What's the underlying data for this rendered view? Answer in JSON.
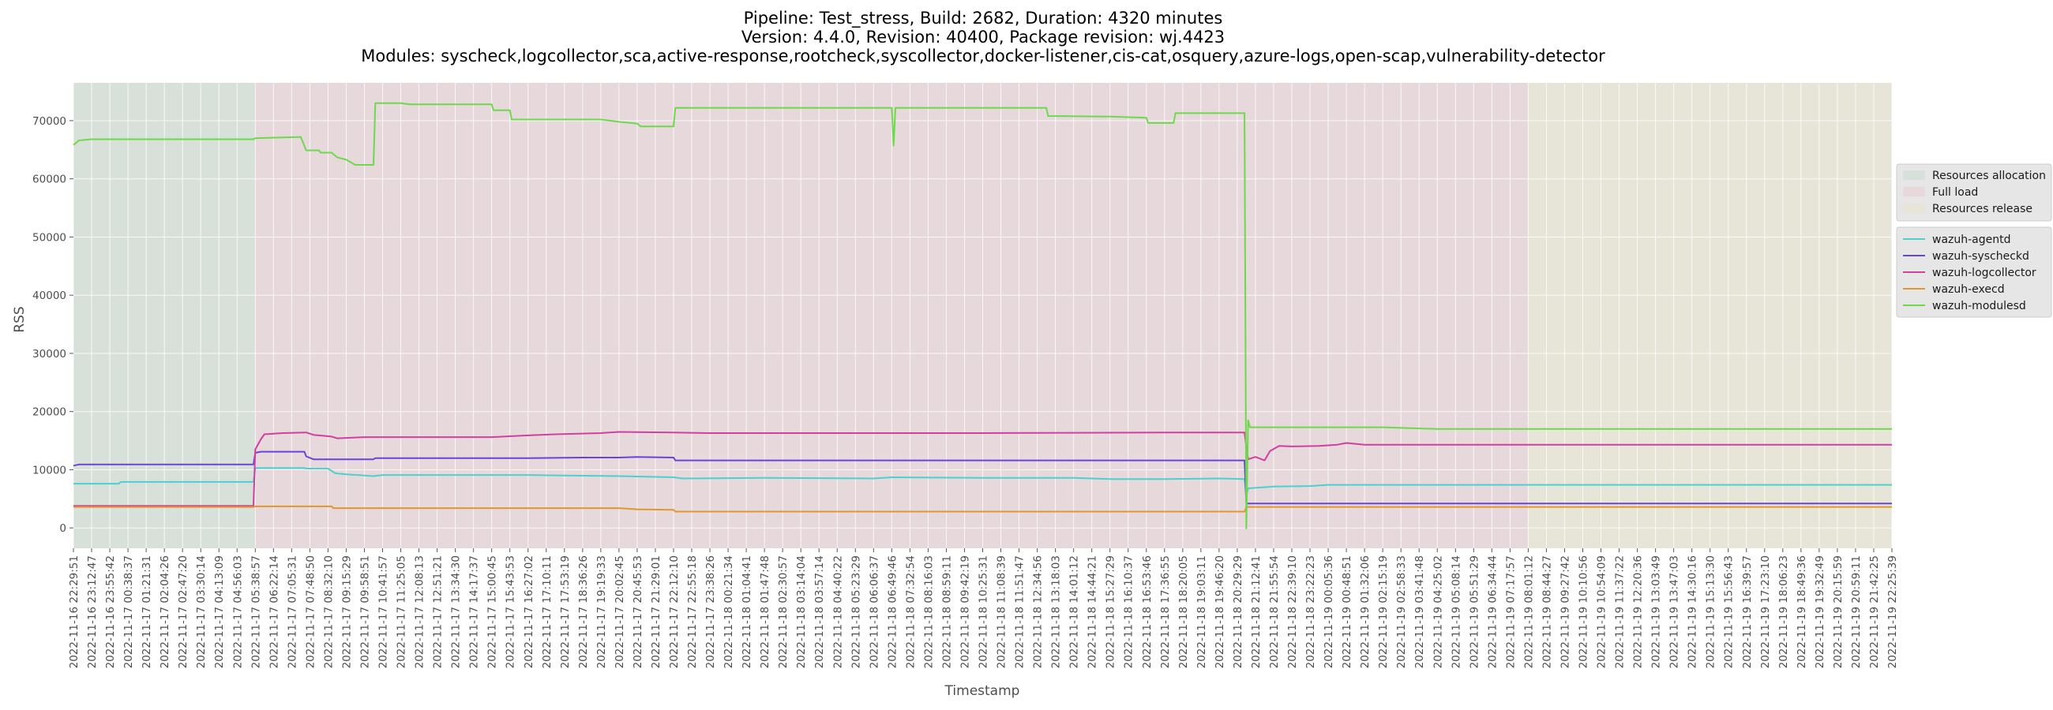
{
  "chart_data": {
    "type": "line",
    "title_lines": [
      "Pipeline: Test_stress, Build: 2682, Duration: 4320 minutes",
      "Version: 4.4.0, Revision: 40400, Package revision: wj.4423",
      "Modules: syscheck,logcollector,sca,active-response,rootcheck,syscollector,docker-listener,cis-cat,osquery,azure-logs,open-scap,vulnerability-detector"
    ],
    "xlabel": "Timestamp",
    "ylabel": "RSS",
    "ylim": [
      -3500,
      76500
    ],
    "yticks": [
      0,
      10000,
      20000,
      30000,
      40000,
      50000,
      60000,
      70000
    ],
    "x_index_range": [
      0,
      100
    ],
    "grid": true,
    "legend_placement": "right",
    "xtick_labels": [
      "2022-11-16 22:29:51",
      "2022-11-16 23:12:47",
      "2022-11-16 23:55:42",
      "2022-11-17 00:38:37",
      "2022-11-17 01:21:31",
      "2022-11-17 02:04:26",
      "2022-11-17 02:47:20",
      "2022-11-17 03:30:14",
      "2022-11-17 04:13:09",
      "2022-11-17 04:56:03",
      "2022-11-17 05:38:57",
      "2022-11-17 06:22:14",
      "2022-11-17 07:05:31",
      "2022-11-17 07:48:50",
      "2022-11-17 08:32:10",
      "2022-11-17 09:15:29",
      "2022-11-17 09:58:51",
      "2022-11-17 10:41:57",
      "2022-11-17 11:25:05",
      "2022-11-17 12:08:13",
      "2022-11-17 12:51:21",
      "2022-11-17 13:34:30",
      "2022-11-17 14:17:37",
      "2022-11-17 15:00:45",
      "2022-11-17 15:43:53",
      "2022-11-17 16:27:02",
      "2022-11-17 17:10:11",
      "2022-11-17 17:53:19",
      "2022-11-17 18:36:26",
      "2022-11-17 19:19:33",
      "2022-11-17 20:02:45",
      "2022-11-17 20:45:53",
      "2022-11-17 21:29:01",
      "2022-11-17 22:12:10",
      "2022-11-17 22:55:18",
      "2022-11-17 23:38:26",
      "2022-11-18 00:21:34",
      "2022-11-18 01:04:41",
      "2022-11-18 01:47:48",
      "2022-11-18 02:30:57",
      "2022-11-18 03:14:04",
      "2022-11-18 03:57:14",
      "2022-11-18 04:40:22",
      "2022-11-18 05:23:29",
      "2022-11-18 06:06:37",
      "2022-11-18 06:49:46",
      "2022-11-18 07:32:54",
      "2022-11-18 08:16:03",
      "2022-11-18 08:59:11",
      "2022-11-18 09:42:19",
      "2022-11-18 10:25:31",
      "2022-11-18 11:08:39",
      "2022-11-18 11:51:47",
      "2022-11-18 12:34:56",
      "2022-11-18 13:18:03",
      "2022-11-18 14:01:12",
      "2022-11-18 14:44:21",
      "2022-11-18 15:27:29",
      "2022-11-18 16:10:37",
      "2022-11-18 16:53:46",
      "2022-11-18 17:36:55",
      "2022-11-18 18:20:05",
      "2022-11-18 19:03:11",
      "2022-11-18 19:46:20",
      "2022-11-18 20:29:29",
      "2022-11-18 21:12:41",
      "2022-11-18 21:55:54",
      "2022-11-18 22:39:10",
      "2022-11-18 23:22:23",
      "2022-11-19 00:05:36",
      "2022-11-19 00:48:51",
      "2022-11-19 01:32:06",
      "2022-11-19 02:15:19",
      "2022-11-19 02:58:33",
      "2022-11-19 03:41:48",
      "2022-11-19 04:25:02",
      "2022-11-19 05:08:14",
      "2022-11-19 05:51:29",
      "2022-11-19 06:34:44",
      "2022-11-19 07:17:57",
      "2022-11-19 08:01:12",
      "2022-11-19 08:44:27",
      "2022-11-19 09:27:42",
      "2022-11-19 10:10:56",
      "2022-11-19 10:54:09",
      "2022-11-19 11:37:22",
      "2022-11-19 12:20:36",
      "2022-11-19 13:03:49",
      "2022-11-19 13:47:03",
      "2022-11-19 14:30:16",
      "2022-11-19 15:13:30",
      "2022-11-19 15:56:43",
      "2022-11-19 16:39:57",
      "2022-11-19 17:23:10",
      "2022-11-19 18:06:23",
      "2022-11-19 18:49:36",
      "2022-11-19 19:32:49",
      "2022-11-19 20:15:59",
      "2022-11-19 20:59:11",
      "2022-11-19 21:42:25",
      "2022-11-19 22:25:39"
    ],
    "phases": [
      {
        "name": "Resources allocation",
        "from": 0,
        "to": 10,
        "color": "#d8e0da"
      },
      {
        "name": "Full load",
        "from": 10,
        "to": 80,
        "color": "#e6d8db"
      },
      {
        "name": "Resources release",
        "from": 80,
        "to": 100,
        "color": "#e6e5d8"
      }
    ],
    "series": [
      {
        "name": "wazuh-agentd",
        "color": "#4dd0d0",
        "points": [
          [
            0,
            7600
          ],
          [
            2.5,
            7600
          ],
          [
            2.6,
            7900
          ],
          [
            9.9,
            7900
          ],
          [
            10,
            10300
          ],
          [
            12.7,
            10300
          ],
          [
            12.8,
            10200
          ],
          [
            14,
            10200
          ],
          [
            14.2,
            9800
          ],
          [
            14.4,
            9400
          ],
          [
            15,
            9200
          ],
          [
            16.5,
            8900
          ],
          [
            17,
            9100
          ],
          [
            20,
            9100
          ],
          [
            25,
            9100
          ],
          [
            27,
            9000
          ],
          [
            30,
            8900
          ],
          [
            33,
            8700
          ],
          [
            33.5,
            8500
          ],
          [
            38,
            8600
          ],
          [
            44,
            8500
          ],
          [
            45,
            8700
          ],
          [
            50,
            8600
          ],
          [
            55,
            8600
          ],
          [
            57,
            8400
          ],
          [
            60,
            8400
          ],
          [
            63,
            8500
          ],
          [
            64.4,
            8400
          ],
          [
            64.5,
            5500
          ],
          [
            64.6,
            6800
          ],
          [
            66,
            7100
          ],
          [
            68,
            7200
          ],
          [
            69,
            7400
          ],
          [
            100,
            7400
          ]
        ]
      },
      {
        "name": "wazuh-syscheckd",
        "color": "#6a44d6",
        "points": [
          [
            0,
            10700
          ],
          [
            0.3,
            10900
          ],
          [
            9.9,
            10900
          ],
          [
            10,
            12900
          ],
          [
            10.3,
            13100
          ],
          [
            12.7,
            13100
          ],
          [
            12.8,
            12300
          ],
          [
            13.2,
            11800
          ],
          [
            16.5,
            11800
          ],
          [
            16.6,
            12000
          ],
          [
            25,
            12000
          ],
          [
            28,
            12100
          ],
          [
            30,
            12100
          ],
          [
            31,
            12200
          ],
          [
            33,
            12100
          ],
          [
            33.1,
            11600
          ],
          [
            64.4,
            11600
          ],
          [
            64.5,
            4200
          ],
          [
            100,
            4200
          ]
        ]
      },
      {
        "name": "wazuh-logcollector",
        "color": "#d13fa0",
        "points": [
          [
            0,
            3800
          ],
          [
            9.9,
            3800
          ],
          [
            10,
            13500
          ],
          [
            10.3,
            15200
          ],
          [
            10.5,
            16100
          ],
          [
            11.5,
            16300
          ],
          [
            12.8,
            16400
          ],
          [
            13.2,
            16000
          ],
          [
            14.2,
            15700
          ],
          [
            14.5,
            15400
          ],
          [
            16,
            15600
          ],
          [
            20,
            15600
          ],
          [
            23,
            15600
          ],
          [
            25,
            15900
          ],
          [
            26.5,
            16100
          ],
          [
            29,
            16300
          ],
          [
            30,
            16500
          ],
          [
            33,
            16400
          ],
          [
            35,
            16300
          ],
          [
            40,
            16300
          ],
          [
            50,
            16300
          ],
          [
            60,
            16400
          ],
          [
            64.4,
            16400
          ],
          [
            64.5,
            14000
          ],
          [
            64.6,
            11800
          ],
          [
            65,
            12200
          ],
          [
            65.5,
            11600
          ],
          [
            65.8,
            13200
          ],
          [
            66.3,
            14100
          ],
          [
            67,
            14000
          ],
          [
            68.5,
            14100
          ],
          [
            69.5,
            14300
          ],
          [
            70,
            14600
          ],
          [
            71,
            14300
          ],
          [
            80,
            14300
          ],
          [
            100,
            14300
          ]
        ]
      },
      {
        "name": "wazuh-execd",
        "color": "#e0982e",
        "points": [
          [
            0,
            3600
          ],
          [
            9.9,
            3600
          ],
          [
            10,
            3700
          ],
          [
            14.2,
            3700
          ],
          [
            14.3,
            3400
          ],
          [
            30,
            3400
          ],
          [
            31,
            3200
          ],
          [
            33,
            3100
          ],
          [
            33.1,
            2800
          ],
          [
            64.4,
            2800
          ],
          [
            64.5,
            3600
          ],
          [
            100,
            3600
          ]
        ]
      },
      {
        "name": "wazuh-modulesd",
        "color": "#6fd94d",
        "points": [
          [
            0,
            65800
          ],
          [
            0.3,
            66600
          ],
          [
            1,
            66800
          ],
          [
            9.9,
            66800
          ],
          [
            10,
            67000
          ],
          [
            12.5,
            67200
          ],
          [
            12.8,
            64900
          ],
          [
            13.5,
            64900
          ],
          [
            13.6,
            64500
          ],
          [
            14.2,
            64500
          ],
          [
            14.5,
            63700
          ],
          [
            15,
            63300
          ],
          [
            15.5,
            62400
          ],
          [
            16.5,
            62400
          ],
          [
            16.6,
            73000
          ],
          [
            18,
            73000
          ],
          [
            18.5,
            72800
          ],
          [
            23,
            72800
          ],
          [
            23.1,
            71800
          ],
          [
            24,
            71800
          ],
          [
            24.1,
            70200
          ],
          [
            29,
            70200
          ],
          [
            30,
            69800
          ],
          [
            31,
            69500
          ],
          [
            31.2,
            69000
          ],
          [
            33,
            69000
          ],
          [
            33.1,
            72200
          ],
          [
            45,
            72200
          ],
          [
            45.1,
            65700
          ],
          [
            45.2,
            72200
          ],
          [
            53.5,
            72200
          ],
          [
            53.6,
            70800
          ],
          [
            57,
            70700
          ],
          [
            59,
            70500
          ],
          [
            59.1,
            69600
          ],
          [
            60.5,
            69600
          ],
          [
            60.6,
            71300
          ],
          [
            64.4,
            71300
          ],
          [
            64.5,
            -100
          ],
          [
            64.6,
            18500
          ],
          [
            64.7,
            17300
          ],
          [
            70,
            17300
          ],
          [
            72,
            17300
          ],
          [
            75,
            17000
          ],
          [
            100,
            17000
          ]
        ]
      }
    ]
  }
}
